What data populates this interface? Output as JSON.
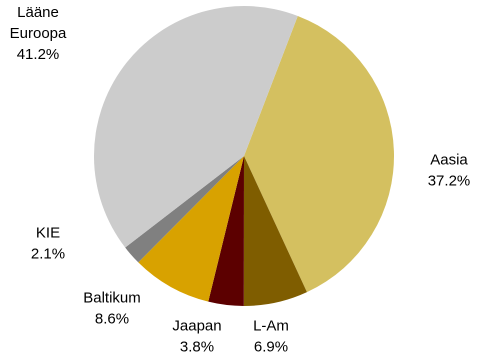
{
  "chart_data": {
    "type": "pie",
    "title": "",
    "start_angle_deg": 21,
    "direction": "clockwise",
    "slices": [
      {
        "name": "Aasia",
        "value": 37.2,
        "label": "37.2%",
        "color": "#d4c060"
      },
      {
        "name": "L-Am",
        "value": 6.9,
        "label": "6.9%",
        "color": "#7f5d00"
      },
      {
        "name": "Jaapan",
        "value": 3.8,
        "label": "3.8%",
        "color": "#5c0000"
      },
      {
        "name": "Baltikum",
        "value": 8.6,
        "label": "8.6%",
        "color": "#d8a200"
      },
      {
        "name": "KIE",
        "value": 2.1,
        "label": "2.1%",
        "color": "#808080"
      },
      {
        "name": "Lääne Euroopa",
        "value": 41.2,
        "label": "41.2%",
        "color": "#cccccc",
        "name_lines": [
          "Lääne",
          "Euroopa"
        ]
      }
    ]
  }
}
